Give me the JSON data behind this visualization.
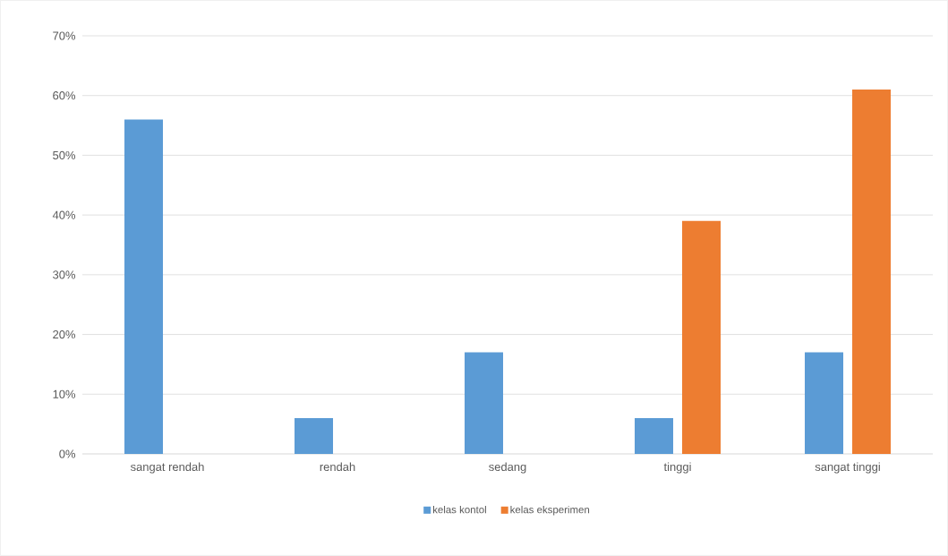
{
  "chart_data": {
    "type": "bar",
    "categories": [
      "sangat rendah",
      "rendah",
      "sedang",
      "tinggi",
      "sangat tinggi"
    ],
    "series": [
      {
        "name": "kelas kontol",
        "color": "#5b9bd5",
        "values": [
          56,
          6,
          17,
          6,
          17
        ]
      },
      {
        "name": "kelas eksperimen",
        "color": "#ed7d31",
        "values": [
          null,
          null,
          null,
          39,
          61
        ]
      }
    ],
    "ylim": [
      0,
      70
    ],
    "yticks": [
      {
        "value": 0,
        "label": "0%"
      },
      {
        "value": 10,
        "label": "10%"
      },
      {
        "value": 20,
        "label": "20%"
      },
      {
        "value": 30,
        "label": "30%"
      },
      {
        "value": 40,
        "label": "40%"
      },
      {
        "value": 50,
        "label": "50%"
      },
      {
        "value": 60,
        "label": "60%"
      },
      {
        "value": 70,
        "label": "70%"
      }
    ],
    "grid": "y",
    "legend": "bottom"
  }
}
